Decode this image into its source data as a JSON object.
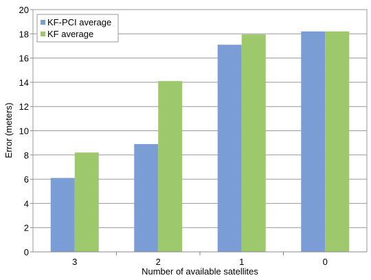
{
  "chart_data": {
    "type": "bar",
    "title": "",
    "xlabel": "Number of available satellites",
    "ylabel": "Error (meters)",
    "categories": [
      "3",
      "2",
      "1",
      "0"
    ],
    "series": [
      {
        "name": "KF-PCI average",
        "color": "#7b9dd6",
        "values": [
          6.1,
          8.9,
          17.1,
          18.2
        ]
      },
      {
        "name": "KF average",
        "color": "#9dc86c",
        "values": [
          8.2,
          14.1,
          17.95,
          18.2
        ]
      }
    ],
    "ylim": [
      0,
      20
    ],
    "yticks": [
      0,
      2,
      4,
      6,
      8,
      10,
      12,
      14,
      16,
      18,
      20
    ],
    "grid": true,
    "legend_position": "top-left"
  }
}
